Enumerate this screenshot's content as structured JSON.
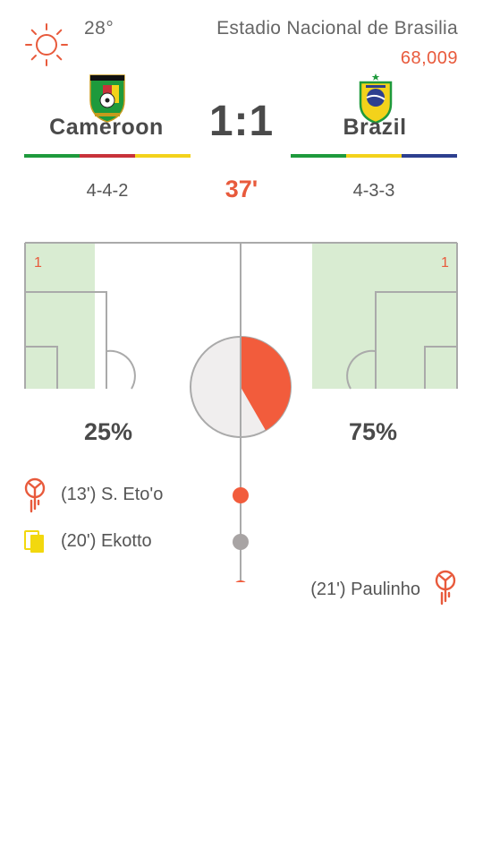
{
  "weather": {
    "icon": "sun-icon",
    "temperature": "28°"
  },
  "venue": {
    "name": "Estadio Nacional de Brasilia",
    "attendance": "68,009"
  },
  "home": {
    "name": "Cameroon",
    "crest": "cameroon-crest-icon",
    "formation": "4-4-2",
    "possession": "25%",
    "possession_value": 0.25,
    "goals_in_box": "1",
    "colors": [
      "#1e9a3c",
      "#c8323a",
      "#f3d21b"
    ]
  },
  "away": {
    "name": "Brazil",
    "crest": "brazil-crest-icon",
    "formation": "4-3-3",
    "possession": "75%",
    "possession_value": 0.75,
    "goals_in_box": "1",
    "colors": [
      "#1e9a3c",
      "#f3d21b",
      "#2d3f8f"
    ]
  },
  "score": "1:1",
  "match_minute": "37'",
  "events": [
    {
      "side": "home",
      "type": "goal",
      "icon": "goal-icon",
      "text": "(13') S. Eto'o"
    },
    {
      "side": "home",
      "type": "yellow-card",
      "icon": "yellow-card-icon",
      "text": "(20') Ekotto"
    },
    {
      "side": "away",
      "type": "goal",
      "icon": "goal-icon",
      "text": "(21') Paulinho"
    }
  ],
  "colors": {
    "accent": "#e85a3c",
    "pitch_fill": "#d9ecd2",
    "line": "#aaaaaa",
    "yellow_card": "#f2d80e",
    "neutral_dot": "#a8a4a4"
  }
}
